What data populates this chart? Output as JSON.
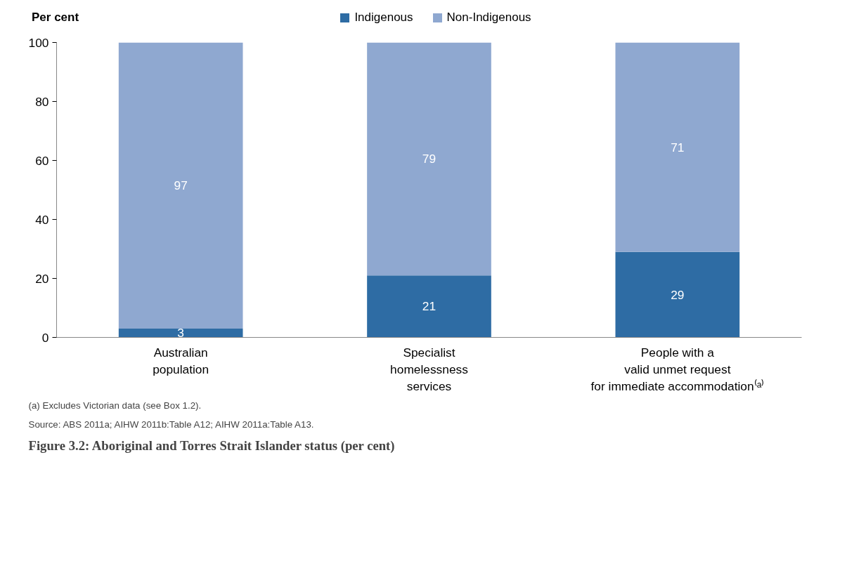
{
  "chart_data": {
    "type": "bar",
    "stacked": true,
    "title": "Figure 3.2: Aboriginal and Torres Strait Islander status (per cent)",
    "ylabel": "Per cent",
    "categories": [
      "Australian\npopulation",
      "Specialist\nhomelessness\nservices",
      "People with a\nvalid unmet request\nfor immediate accommodation⁽ᵃ⁾"
    ],
    "series": [
      {
        "name": "Indigenous",
        "color": "#2e6ca4",
        "values": [
          3,
          21,
          29
        ]
      },
      {
        "name": "Non-Indigenous",
        "color": "#8fa8d0",
        "values": [
          97,
          79,
          71
        ]
      }
    ],
    "ylim": [
      0,
      100
    ],
    "yticks": [
      0,
      20,
      40,
      60,
      80,
      100
    ],
    "grid": false,
    "legend": "top",
    "data_labels": true,
    "annotations": [
      "(a) Excludes Victorian data (see Box 1.2).",
      "Source: ABS 2011a; AIHW 2011b:Table A12; AIHW 2011a:Table A13."
    ]
  }
}
